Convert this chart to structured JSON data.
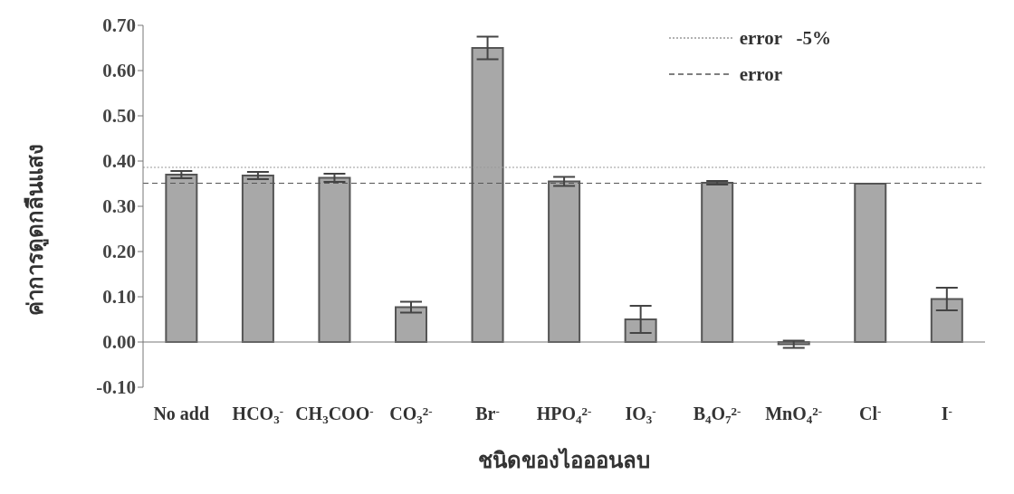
{
  "chart_data": {
    "type": "bar",
    "xlabel": "ชนิดของไอออนลบ",
    "ylabel": "ค่าการดูดกลืนแสง",
    "categories": [
      "No add",
      "HCO$_{3}$$^{-}$",
      "CH$_{3}$COO$^{-}$",
      "CO$_{3}$$^{2-}$",
      "Br$^{-}$",
      "HPO$_{4}$$^{2-}$",
      "IO$_{3}$$^{-}$",
      "B$_{4}$O$_{7}$$^{2-}$",
      "MnO$_{4}$$^{2-}$",
      "Cl$^{-}$",
      "I$^{-}$"
    ],
    "values": [
      0.37,
      0.368,
      0.363,
      0.077,
      0.65,
      0.355,
      0.05,
      0.352,
      -0.005,
      0.35,
      0.095
    ],
    "errors": [
      0.008,
      0.008,
      0.009,
      0.012,
      0.025,
      0.01,
      0.03,
      0.004,
      0.008,
      null,
      0.025
    ],
    "color": "#a8a8a8",
    "ylim": [
      -0.1,
      0.7
    ],
    "yticks": [
      {
        "value": -0.1,
        "label": "-0.10"
      },
      {
        "value": 0,
        "label": "0.00"
      },
      {
        "value": 0.1,
        "label": "0.10"
      },
      {
        "value": 0.2,
        "label": "0.20"
      },
      {
        "value": 0.3,
        "label": "0.30"
      },
      {
        "value": 0.4,
        "label": "0.40"
      },
      {
        "value": 0.5,
        "label": "0.50"
      },
      {
        "value": 0.6,
        "label": "0.60"
      },
      {
        "value": 0.7,
        "label": "0.70"
      }
    ],
    "ref_lines": [
      {
        "axis": "y",
        "value": 0.386,
        "label": "error   -5%",
        "line_style": "dotted",
        "color": "#999999"
      },
      {
        "axis": "y",
        "value": 0.351,
        "label": "error",
        "line_style": "dashed",
        "color": "#555555"
      }
    ],
    "legend": "top right"
  }
}
